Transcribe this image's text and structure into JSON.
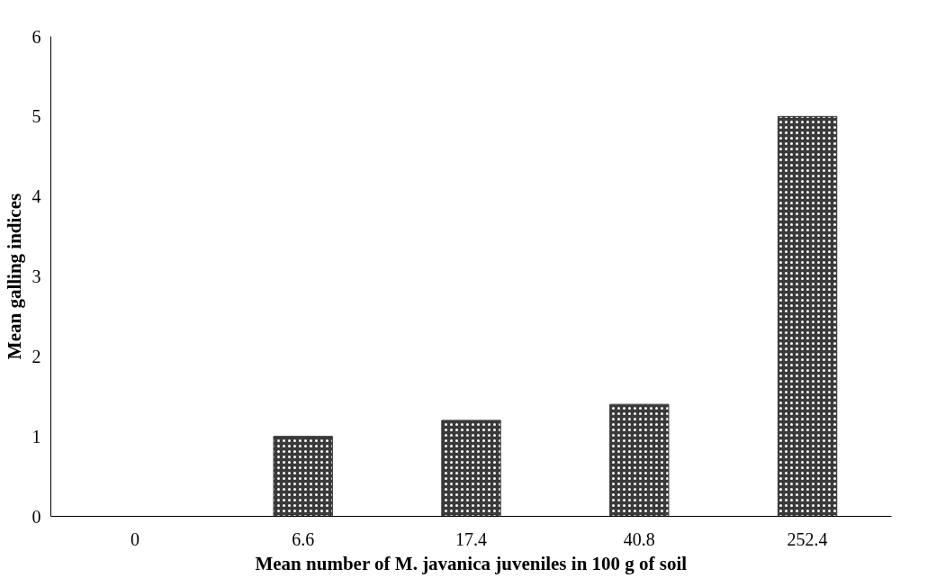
{
  "chart_data": {
    "type": "bar",
    "xlabel": "Mean number of M. javanica juveniles in 100 g of soil",
    "ylabel": "Mean galling indices",
    "categories": [
      "0",
      "6.6",
      "17.4",
      "40.8",
      "252.4"
    ],
    "values": [
      0,
      1,
      1.2,
      1.4,
      5
    ],
    "color": "#3a3a3a",
    "ylim": [
      0,
      6
    ],
    "yticks": [
      0,
      1,
      2,
      3,
      4,
      5,
      6
    ],
    "grid": false
  }
}
